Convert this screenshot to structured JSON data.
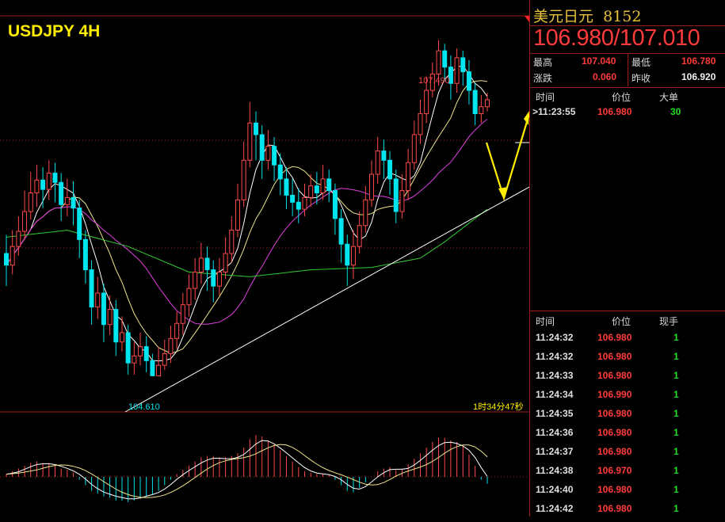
{
  "chart_title": "USDJPY 4H",
  "instrument": {
    "name": "美元日元",
    "code": "8152"
  },
  "quote": "106.980/107.010",
  "stats": {
    "high_label": "最高",
    "high": "107.040",
    "low_label": "最低",
    "low": "106.780",
    "change_label": "涨跌",
    "change": "0.060",
    "prev_close_label": "昨收",
    "prev_close": "106.920"
  },
  "big_order": {
    "headers": [
      "时间",
      "价位",
      "大单"
    ],
    "row": {
      "time": ">11:23:55",
      "price": "106.980",
      "size": "30"
    }
  },
  "ticks": {
    "headers": [
      "时间",
      "价位",
      "现手"
    ],
    "rows": [
      {
        "time": "11:24:32",
        "price": "106.980",
        "vol": "1"
      },
      {
        "time": "11:24:32",
        "price": "106.980",
        "vol": "1"
      },
      {
        "time": "11:24:33",
        "price": "106.980",
        "vol": "1"
      },
      {
        "time": "11:24:34",
        "price": "106.990",
        "vol": "1"
      },
      {
        "time": "11:24:35",
        "price": "106.980",
        "vol": "1"
      },
      {
        "time": "11:24:36",
        "price": "106.980",
        "vol": "1"
      },
      {
        "time": "11:24:37",
        "price": "106.980",
        "vol": "1"
      },
      {
        "time": "11:24:38",
        "price": "106.970",
        "vol": "1"
      },
      {
        "time": "11:24:40",
        "price": "106.980",
        "vol": "1"
      },
      {
        "time": "11:24:42",
        "price": "106.980",
        "vol": "1"
      }
    ]
  },
  "countdown": "1时34分47秒",
  "colors": {
    "up": "#ff4a4a",
    "down": "#00e5ee",
    "ma5": "#ffffff",
    "ma10": "#f0e68c",
    "ma20": "#e040e0",
    "ma60": "#33cc33",
    "grid": "#9b1c1c",
    "annotation": "#ffee00"
  },
  "chart_data": {
    "type": "candlestick",
    "title": "USDJPY 4H",
    "ylim": [
      104.3,
      107.7
    ],
    "annotations": {
      "high_label": "107.490",
      "low_label": "104.610"
    },
    "candles": [
      {
        "o": 105.66,
        "c": 105.56,
        "h": 105.82,
        "l": 105.38
      },
      {
        "o": 105.56,
        "c": 105.72,
        "h": 105.86,
        "l": 105.48
      },
      {
        "o": 105.72,
        "c": 105.85,
        "h": 105.98,
        "l": 105.64
      },
      {
        "o": 105.85,
        "c": 106.02,
        "h": 106.2,
        "l": 105.78
      },
      {
        "o": 106.02,
        "c": 106.18,
        "h": 106.36,
        "l": 105.95
      },
      {
        "o": 106.18,
        "c": 106.29,
        "h": 106.42,
        "l": 106.06
      },
      {
        "o": 106.29,
        "c": 106.21,
        "h": 106.4,
        "l": 106.05
      },
      {
        "o": 106.21,
        "c": 106.35,
        "h": 106.46,
        "l": 106.12
      },
      {
        "o": 106.35,
        "c": 106.27,
        "h": 106.44,
        "l": 106.1
      },
      {
        "o": 106.27,
        "c": 106.08,
        "h": 106.35,
        "l": 105.94
      },
      {
        "o": 106.08,
        "c": 106.14,
        "h": 106.3,
        "l": 105.98
      },
      {
        "o": 106.14,
        "c": 106.05,
        "h": 106.28,
        "l": 105.9
      },
      {
        "o": 106.05,
        "c": 105.78,
        "h": 106.12,
        "l": 105.62
      },
      {
        "o": 105.78,
        "c": 105.52,
        "h": 105.86,
        "l": 105.4
      },
      {
        "o": 105.52,
        "c": 105.2,
        "h": 105.6,
        "l": 105.05
      },
      {
        "o": 105.2,
        "c": 105.32,
        "h": 105.46,
        "l": 105.1
      },
      {
        "o": 105.32,
        "c": 105.05,
        "h": 105.4,
        "l": 104.9
      },
      {
        "o": 105.05,
        "c": 105.18,
        "h": 105.3,
        "l": 104.96
      },
      {
        "o": 105.18,
        "c": 104.9,
        "h": 105.26,
        "l": 104.78
      },
      {
        "o": 104.9,
        "c": 104.98,
        "h": 105.12,
        "l": 104.82
      },
      {
        "o": 104.98,
        "c": 104.72,
        "h": 105.05,
        "l": 104.62
      },
      {
        "o": 104.72,
        "c": 104.78,
        "h": 104.9,
        "l": 104.62
      },
      {
        "o": 104.78,
        "c": 104.86,
        "h": 104.98,
        "l": 104.7
      },
      {
        "o": 104.86,
        "c": 104.74,
        "h": 104.95,
        "l": 104.64
      },
      {
        "o": 104.74,
        "c": 104.61,
        "h": 104.8,
        "l": 104.61
      },
      {
        "o": 104.61,
        "c": 104.7,
        "h": 104.86,
        "l": 104.61
      },
      {
        "o": 104.7,
        "c": 104.8,
        "h": 104.92,
        "l": 104.66
      },
      {
        "o": 104.8,
        "c": 104.93,
        "h": 105.04,
        "l": 104.72
      },
      {
        "o": 104.93,
        "c": 105.06,
        "h": 105.16,
        "l": 104.84
      },
      {
        "o": 105.06,
        "c": 105.22,
        "h": 105.32,
        "l": 104.96
      },
      {
        "o": 105.22,
        "c": 105.36,
        "h": 105.48,
        "l": 105.12
      },
      {
        "o": 105.36,
        "c": 105.5,
        "h": 105.62,
        "l": 105.26
      },
      {
        "o": 105.5,
        "c": 105.62,
        "h": 105.75,
        "l": 105.4
      },
      {
        "o": 105.62,
        "c": 105.52,
        "h": 105.72,
        "l": 105.34
      },
      {
        "o": 105.52,
        "c": 105.38,
        "h": 105.6,
        "l": 105.24
      },
      {
        "o": 105.38,
        "c": 105.5,
        "h": 105.62,
        "l": 105.3
      },
      {
        "o": 105.5,
        "c": 105.66,
        "h": 105.8,
        "l": 105.44
      },
      {
        "o": 105.66,
        "c": 105.86,
        "h": 105.98,
        "l": 105.58
      },
      {
        "o": 105.86,
        "c": 106.12,
        "h": 106.26,
        "l": 105.8
      },
      {
        "o": 106.12,
        "c": 106.46,
        "h": 106.62,
        "l": 106.06
      },
      {
        "o": 106.46,
        "c": 106.78,
        "h": 106.96,
        "l": 106.4
      },
      {
        "o": 106.78,
        "c": 106.68,
        "h": 106.88,
        "l": 106.46
      },
      {
        "o": 106.68,
        "c": 106.46,
        "h": 106.76,
        "l": 106.3
      },
      {
        "o": 106.46,
        "c": 106.58,
        "h": 106.72,
        "l": 106.38
      },
      {
        "o": 106.58,
        "c": 106.42,
        "h": 106.66,
        "l": 106.28
      },
      {
        "o": 106.42,
        "c": 106.3,
        "h": 106.52,
        "l": 106.16
      },
      {
        "o": 106.3,
        "c": 106.16,
        "h": 106.4,
        "l": 106.04
      },
      {
        "o": 106.16,
        "c": 106.1,
        "h": 106.3,
        "l": 105.98
      },
      {
        "o": 106.1,
        "c": 106.04,
        "h": 106.22,
        "l": 105.92
      },
      {
        "o": 106.04,
        "c": 106.14,
        "h": 106.26,
        "l": 105.98
      },
      {
        "o": 106.14,
        "c": 106.24,
        "h": 106.34,
        "l": 106.06
      },
      {
        "o": 106.24,
        "c": 106.18,
        "h": 106.36,
        "l": 106.08
      },
      {
        "o": 106.18,
        "c": 106.3,
        "h": 106.42,
        "l": 106.12
      },
      {
        "o": 106.3,
        "c": 106.2,
        "h": 106.38,
        "l": 106.1
      },
      {
        "o": 106.2,
        "c": 105.96,
        "h": 106.26,
        "l": 105.82
      },
      {
        "o": 105.96,
        "c": 105.74,
        "h": 106.04,
        "l": 105.58
      },
      {
        "o": 105.74,
        "c": 105.56,
        "h": 105.82,
        "l": 105.38
      },
      {
        "o": 105.56,
        "c": 105.72,
        "h": 105.86,
        "l": 105.44
      },
      {
        "o": 105.72,
        "c": 105.9,
        "h": 106.02,
        "l": 105.66
      },
      {
        "o": 105.9,
        "c": 106.12,
        "h": 106.24,
        "l": 105.84
      },
      {
        "o": 106.12,
        "c": 106.34,
        "h": 106.46,
        "l": 106.06
      },
      {
        "o": 106.34,
        "c": 106.54,
        "h": 106.66,
        "l": 106.26
      },
      {
        "o": 106.54,
        "c": 106.46,
        "h": 106.64,
        "l": 106.3
      },
      {
        "o": 106.46,
        "c": 106.3,
        "h": 106.54,
        "l": 106.16
      },
      {
        "o": 106.3,
        "c": 106.02,
        "h": 106.38,
        "l": 105.92
      },
      {
        "o": 106.02,
        "c": 106.2,
        "h": 106.34,
        "l": 105.96
      },
      {
        "o": 106.2,
        "c": 106.44,
        "h": 106.56,
        "l": 106.12
      },
      {
        "o": 106.44,
        "c": 106.68,
        "h": 106.8,
        "l": 106.38
      },
      {
        "o": 106.68,
        "c": 106.86,
        "h": 106.98,
        "l": 106.6
      },
      {
        "o": 106.86,
        "c": 107.06,
        "h": 107.18,
        "l": 106.78
      },
      {
        "o": 107.06,
        "c": 107.2,
        "h": 107.3,
        "l": 107.0
      },
      {
        "o": 107.2,
        "c": 107.4,
        "h": 107.49,
        "l": 107.1
      },
      {
        "o": 107.4,
        "c": 107.26,
        "h": 107.46,
        "l": 107.14
      },
      {
        "o": 107.26,
        "c": 107.12,
        "h": 107.36,
        "l": 106.98
      },
      {
        "o": 107.12,
        "c": 107.34,
        "h": 107.42,
        "l": 107.04
      },
      {
        "o": 107.34,
        "c": 107.22,
        "h": 107.4,
        "l": 107.1
      },
      {
        "o": 107.22,
        "c": 107.06,
        "h": 107.32,
        "l": 106.94
      },
      {
        "o": 107.06,
        "c": 106.86,
        "h": 107.12,
        "l": 106.76
      },
      {
        "o": 106.86,
        "c": 106.92,
        "h": 107.02,
        "l": 106.78
      },
      {
        "o": 106.92,
        "c": 106.98,
        "h": 107.04,
        "l": 106.88
      }
    ],
    "ma60": [
      [
        0,
        105.8
      ],
      [
        10,
        105.86
      ],
      [
        20,
        105.72
      ],
      [
        30,
        105.5
      ],
      [
        40,
        105.46
      ],
      [
        50,
        105.52
      ],
      [
        60,
        105.54
      ],
      [
        68,
        105.62
      ],
      [
        72,
        105.76
      ],
      [
        79,
        106.04
      ]
    ],
    "macd_hist": [
      0.04,
      0.08,
      0.12,
      0.16,
      0.2,
      0.22,
      0.2,
      0.2,
      0.18,
      0.12,
      0.1,
      0.06,
      -0.04,
      -0.12,
      -0.2,
      -0.24,
      -0.28,
      -0.3,
      -0.34,
      -0.34,
      -0.36,
      -0.34,
      -0.3,
      -0.28,
      -0.26,
      -0.2,
      -0.12,
      -0.04,
      0.04,
      0.1,
      0.16,
      0.22,
      0.28,
      0.3,
      0.3,
      0.28,
      0.28,
      0.3,
      0.34,
      0.42,
      0.54,
      0.6,
      0.58,
      0.52,
      0.46,
      0.38,
      0.3,
      0.22,
      0.14,
      0.08,
      0.06,
      0.04,
      0.04,
      0.02,
      -0.04,
      -0.12,
      -0.2,
      -0.22,
      -0.16,
      -0.08,
      0,
      0.08,
      0.12,
      0.14,
      0.1,
      0.12,
      0.18,
      0.26,
      0.34,
      0.42,
      0.5,
      0.56,
      0.56,
      0.52,
      0.5,
      0.44,
      0.32,
      0.16,
      -0.04,
      -0.1
    ]
  }
}
